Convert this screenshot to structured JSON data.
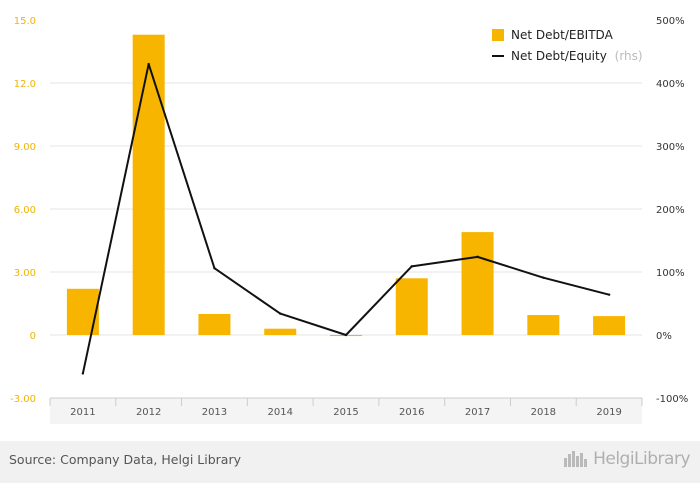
{
  "chart_data": {
    "type": "bar",
    "categories": [
      "2011",
      "2012",
      "2013",
      "2014",
      "2015",
      "2016",
      "2017",
      "2018",
      "2019"
    ],
    "series": [
      {
        "name": "Net Debt/EBITDA",
        "type": "bar",
        "axis": "left",
        "color": "#f7b500",
        "values": [
          2.2,
          14.3,
          1.0,
          0.3,
          -0.05,
          2.7,
          4.9,
          0.95,
          0.9
        ]
      },
      {
        "name": "Net Debt/Equity",
        "name_suffix": "(rhs)",
        "type": "line",
        "axis": "right",
        "color": "#111111",
        "values": [
          -61,
          430,
          106,
          34,
          0,
          109,
          124,
          91,
          64
        ]
      }
    ],
    "y_left": {
      "ticks": [
        "-3.00",
        "0",
        "3.00",
        "6.00",
        "9.00",
        "12.0",
        "15.0"
      ],
      "tick_values": [
        -3,
        0,
        3,
        6,
        9,
        12,
        15
      ],
      "ylim": [
        -3,
        15
      ]
    },
    "y_right": {
      "ticks": [
        "-100%",
        "0%",
        "100%",
        "200%",
        "300%",
        "400%",
        "500%"
      ],
      "tick_values": [
        -100,
        0,
        100,
        200,
        300,
        400,
        500
      ],
      "ylim": [
        -100,
        500
      ]
    },
    "grid": true,
    "legend_position": "top-right"
  },
  "footer": {
    "source": "Source: Company Data, Helgi Library",
    "brand": "HelgiLibrary"
  }
}
